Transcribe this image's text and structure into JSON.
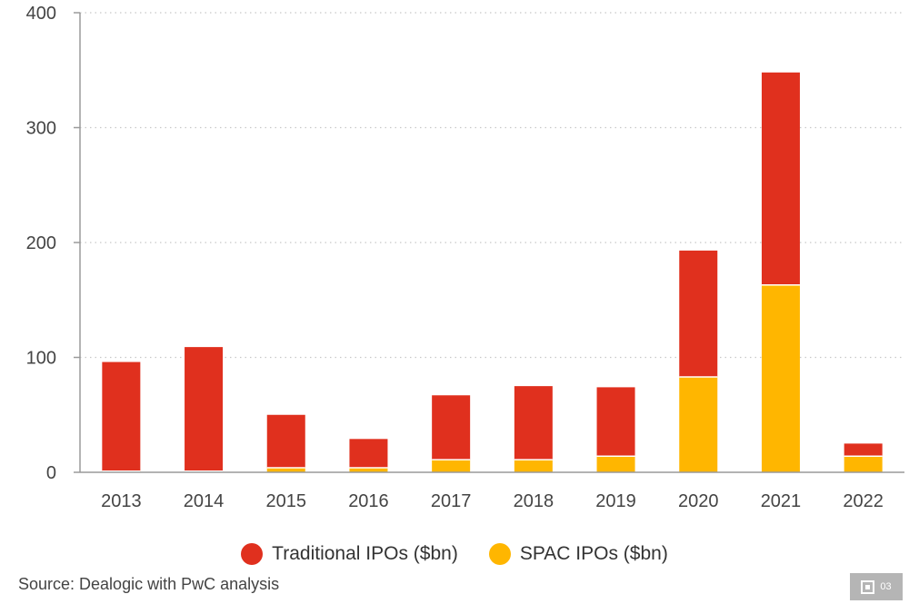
{
  "chart_data": {
    "type": "bar",
    "stacked": true,
    "categories": [
      "2013",
      "2014",
      "2015",
      "2016",
      "2017",
      "2018",
      "2019",
      "2020",
      "2021",
      "2022"
    ],
    "series": [
      {
        "name": "SPAC IPOs ($bn)",
        "color": "#ffb600",
        "values": [
          1,
          1,
          4,
          4,
          11,
          11,
          14,
          83,
          163,
          14
        ]
      },
      {
        "name": "Traditional IPOs ($bn)",
        "color": "#e0301e",
        "values": [
          95,
          108,
          46,
          25,
          56,
          64,
          60,
          110,
          185,
          11
        ]
      }
    ],
    "ylim": [
      0,
      400
    ],
    "yticks": [
      0,
      100,
      200,
      300,
      400
    ],
    "grid": "horizontal-dotted",
    "legend_position": "bottom",
    "source": "Source: Dealogic with PwC analysis"
  },
  "legend": [
    {
      "label": "Traditional IPOs ($bn)",
      "color": "#e0301e"
    },
    {
      "label": "SPAC IPOs ($bn)",
      "color": "#ffb600"
    }
  ],
  "badge": {
    "label": "03",
    "icon": "qr-code-icon"
  }
}
